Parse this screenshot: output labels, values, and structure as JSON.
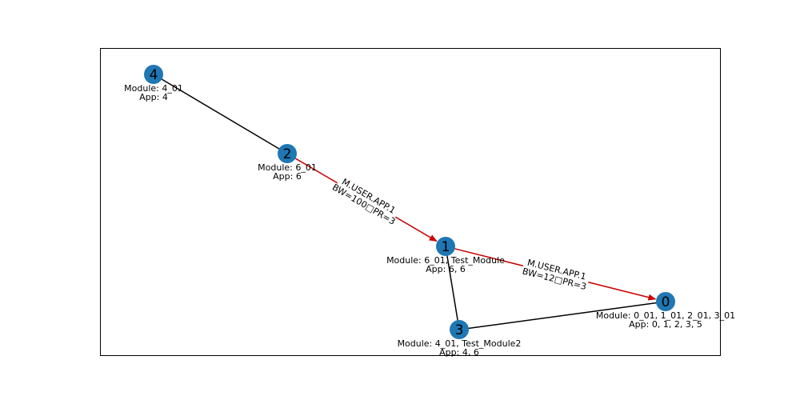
{
  "nodes": [
    {
      "id": "0",
      "module": "Module: 0_01, 1_01, 2_01, 3_01",
      "app": "App: 0, 1, 2, 3, 5"
    },
    {
      "id": "1",
      "module": "Module: 6_01, Test_Module",
      "app": "App: 6, 6"
    },
    {
      "id": "2",
      "module": "Module: 6_01",
      "app": "App: 6"
    },
    {
      "id": "3",
      "module": "Module: 4_01, Test_Module2",
      "app": "App: 4, 6"
    },
    {
      "id": "4",
      "module": "Module: 4_01",
      "app": "App: 4"
    }
  ],
  "edges": [
    {
      "from": "4",
      "to": "2",
      "color": "#000000",
      "directed": false
    },
    {
      "from": "1",
      "to": "3",
      "color": "#000000",
      "directed": false
    },
    {
      "from": "3",
      "to": "0",
      "color": "#000000",
      "directed": false
    },
    {
      "from": "2",
      "to": "1",
      "color": "#cc0000",
      "directed": true,
      "label1": "M.USER.APP.1",
      "label2": "BW=100□PR=3"
    },
    {
      "from": "1",
      "to": "0",
      "color": "#cc0000",
      "directed": true,
      "label1": "M.USER.APP.1",
      "label2": "BW=12□PR=3"
    }
  ],
  "colors": {
    "node": "#1f77b4",
    "edge": "#000000",
    "flow": "#cc0000"
  }
}
